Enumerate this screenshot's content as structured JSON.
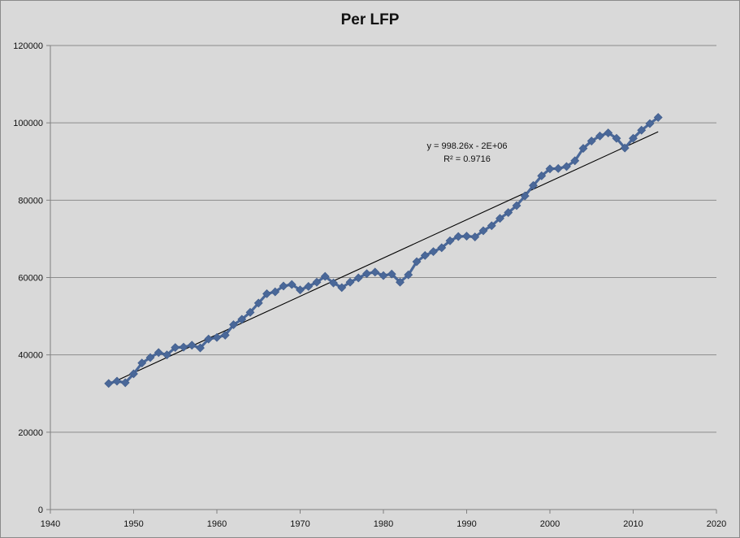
{
  "chart_data": {
    "type": "scatter",
    "title": "Per LFP",
    "xlabel": "",
    "ylabel": "",
    "xlim": [
      1940,
      2020
    ],
    "ylim": [
      0,
      120000
    ],
    "x_ticks": [
      "1940",
      "1950",
      "1960",
      "1970",
      "1980",
      "1990",
      "2000",
      "2010",
      "2020"
    ],
    "y_ticks": [
      "0",
      "20000",
      "40000",
      "60000",
      "80000",
      "100000",
      "120000"
    ],
    "grid": "horizontal",
    "legend": "none",
    "colors": {
      "series": "#4a6899",
      "trendline": "#000000",
      "background": "#d9d9d9"
    },
    "series": [
      {
        "x": [
          1947,
          1948,
          1949,
          1950,
          1951,
          1952,
          1953,
          1954,
          1955,
          1956,
          1957,
          1958,
          1959,
          1960,
          1961,
          1962,
          1963,
          1964,
          1965,
          1966,
          1967,
          1968,
          1969,
          1970,
          1971,
          1972,
          1973,
          1974,
          1975,
          1976,
          1977,
          1978,
          1979,
          1980,
          1981,
          1982,
          1983,
          1984,
          1985,
          1986,
          1987,
          1988,
          1989,
          1990,
          1991,
          1992,
          1993,
          1994,
          1995,
          1996,
          1997,
          1998,
          1999,
          2000,
          2001,
          2002,
          2003,
          2004,
          2005,
          2006,
          2007,
          2008,
          2009,
          2010,
          2011,
          2012,
          2013
        ],
        "y": [
          32600,
          33200,
          32800,
          35100,
          37900,
          39300,
          40600,
          40000,
          41900,
          42000,
          42500,
          41800,
          44100,
          44500,
          45100,
          47800,
          49200,
          51000,
          53400,
          55800,
          56300,
          57800,
          58200,
          56800,
          57700,
          58800,
          60300,
          58600,
          57400,
          58800,
          59900,
          61000,
          61400,
          60500,
          60900,
          58800,
          60700,
          64100,
          65700,
          66700,
          67700,
          69500,
          70600,
          70700,
          70500,
          72100,
          73400,
          75300,
          76800,
          78600,
          81100,
          83800,
          86300,
          88100,
          88200,
          88700,
          90200,
          93400,
          95300,
          96600,
          97400,
          96000,
          93500,
          96000,
          98100,
          99800,
          101400
        ]
      }
    ],
    "trendline": {
      "type": "linear",
      "x_range": [
        1947,
        2013
      ],
      "y_range": [
        32400,
        97700
      ],
      "equation": "y = 998.26x - 2E+06",
      "r_squared_label": "R² = 0.9716"
    }
  }
}
